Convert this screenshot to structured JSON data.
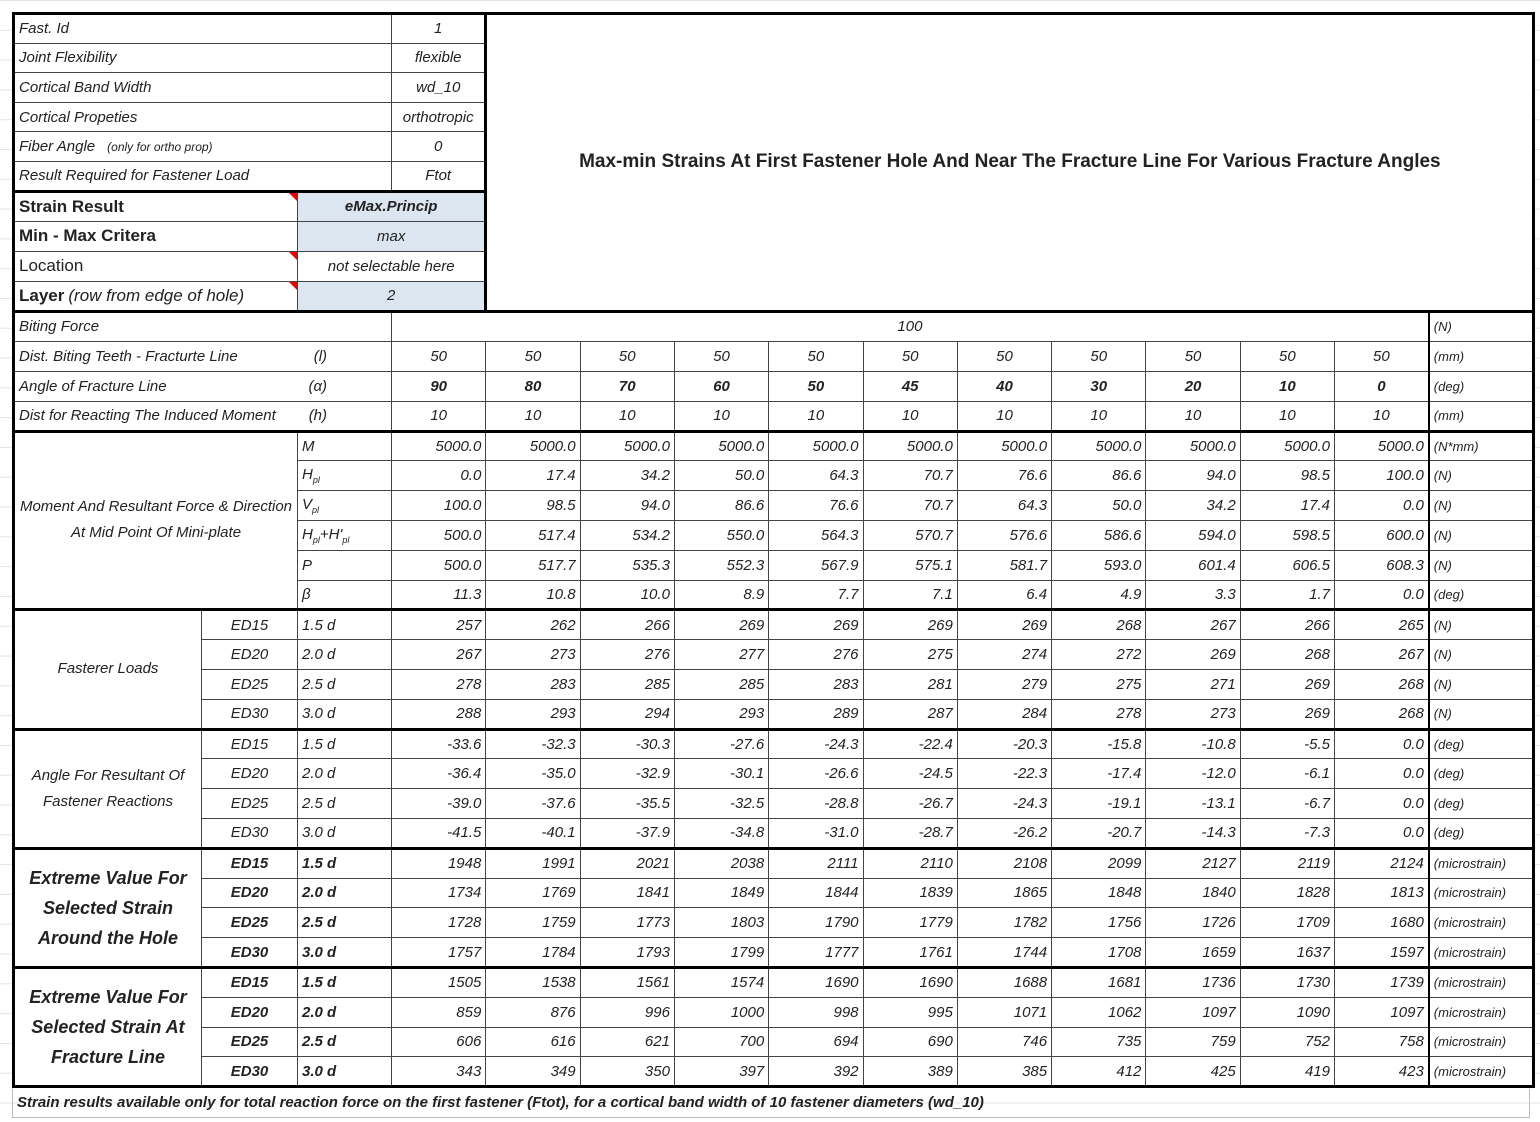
{
  "title": "Max-min Strains At First Fastener Hole And Near The Fracture Line For Various Fracture Angles",
  "params": [
    {
      "label": "Fast. Id",
      "value": "1"
    },
    {
      "label": "Joint Flexibility",
      "value": "flexible"
    },
    {
      "label": "Cortical Band Width",
      "value": "wd_10"
    },
    {
      "label": "Cortical Propeties",
      "value": "orthotropic"
    },
    {
      "label": "Fiber Angle",
      "note": "(only for ortho prop)",
      "value": "0"
    },
    {
      "label": "Result Required for Fastener Load",
      "value": "Ftot"
    }
  ],
  "selectors": [
    {
      "label": "Strain Result",
      "value": "eMax.Princip",
      "selectable": true,
      "comment": true
    },
    {
      "label": "Min - Max Critera",
      "value": "max",
      "selectable": true,
      "comment": false
    },
    {
      "label": "Location",
      "value": "not selectable here",
      "selectable": false,
      "comment": true
    },
    {
      "label": "Layer",
      "label_note": "(row from edge of hole)",
      "value": "2",
      "selectable": true,
      "comment": true
    }
  ],
  "biting_force": {
    "label": "Biting Force",
    "value": "100",
    "unit": "(N)"
  },
  "inputs": [
    {
      "label": "Dist. Biting Teeth - Fracturte Line",
      "symbol": "(l)",
      "values": [
        "50",
        "50",
        "50",
        "50",
        "50",
        "50",
        "50",
        "50",
        "50",
        "50",
        "50"
      ],
      "unit": "(mm)"
    },
    {
      "label": "Angle of Fracture Line",
      "symbol": "(α)",
      "values": [
        "90",
        "80",
        "70",
        "60",
        "50",
        "45",
        "40",
        "30",
        "20",
        "10",
        "0"
      ],
      "unit": "(deg)",
      "bold": true
    },
    {
      "label": "Dist for Reacting The Induced Moment",
      "symbol": "(h)",
      "values": [
        "10",
        "10",
        "10",
        "10",
        "10",
        "10",
        "10",
        "10",
        "10",
        "10",
        "10"
      ],
      "unit": "(mm)"
    }
  ],
  "moment": {
    "label": "Moment And Resultant Force & Direction At Mid Point Of Mini-plate",
    "rows": [
      {
        "sym": "M",
        "values": [
          "5000.0",
          "5000.0",
          "5000.0",
          "5000.0",
          "5000.0",
          "5000.0",
          "5000.0",
          "5000.0",
          "5000.0",
          "5000.0",
          "5000.0"
        ],
        "unit": "(N*mm)"
      },
      {
        "sym": "H",
        "sub": "pl",
        "values": [
          "0.0",
          "17.4",
          "34.2",
          "50.0",
          "64.3",
          "70.7",
          "76.6",
          "86.6",
          "94.0",
          "98.5",
          "100.0"
        ],
        "unit": "(N)"
      },
      {
        "sym": "V",
        "sub": "pl",
        "values": [
          "100.0",
          "98.5",
          "94.0",
          "86.6",
          "76.6",
          "70.7",
          "64.3",
          "50.0",
          "34.2",
          "17.4",
          "0.0"
        ],
        "unit": "(N)"
      },
      {
        "sym": "H",
        "sub": "pl",
        "sym2": "+H'",
        "sub2": "pl",
        "values": [
          "500.0",
          "517.4",
          "534.2",
          "550.0",
          "564.3",
          "570.7",
          "576.6",
          "586.6",
          "594.0",
          "598.5",
          "600.0"
        ],
        "unit": "(N)"
      },
      {
        "sym": "P",
        "values": [
          "500.0",
          "517.7",
          "535.3",
          "552.3",
          "567.9",
          "575.1",
          "581.7",
          "593.0",
          "601.4",
          "606.5",
          "608.3"
        ],
        "unit": "(N)"
      },
      {
        "sym": "β",
        "values": [
          "11.3",
          "10.8",
          "10.0",
          "8.9",
          "7.7",
          "7.1",
          "6.4",
          "4.9",
          "3.3",
          "1.7",
          "0.0"
        ],
        "unit": "(deg)"
      }
    ]
  },
  "groups": [
    {
      "label": "Fasterer Loads",
      "bold": false,
      "rows": [
        {
          "ed": "ED15",
          "d": "1.5 d",
          "values": [
            "257",
            "262",
            "266",
            "269",
            "269",
            "269",
            "269",
            "268",
            "267",
            "266",
            "265"
          ],
          "unit": "(N)"
        },
        {
          "ed": "ED20",
          "d": "2.0 d",
          "values": [
            "267",
            "273",
            "276",
            "277",
            "276",
            "275",
            "274",
            "272",
            "269",
            "268",
            "267"
          ],
          "unit": "(N)"
        },
        {
          "ed": "ED25",
          "d": "2.5 d",
          "values": [
            "278",
            "283",
            "285",
            "285",
            "283",
            "281",
            "279",
            "275",
            "271",
            "269",
            "268"
          ],
          "unit": "(N)"
        },
        {
          "ed": "ED30",
          "d": "3.0 d",
          "values": [
            "288",
            "293",
            "294",
            "293",
            "289",
            "287",
            "284",
            "278",
            "273",
            "269",
            "268"
          ],
          "unit": "(N)"
        }
      ]
    },
    {
      "label": "Angle For Resultant Of Fastener Reactions",
      "bold": false,
      "rows": [
        {
          "ed": "ED15",
          "d": "1.5 d",
          "values": [
            "-33.6",
            "-32.3",
            "-30.3",
            "-27.6",
            "-24.3",
            "-22.4",
            "-20.3",
            "-15.8",
            "-10.8",
            "-5.5",
            "0.0"
          ],
          "unit": "(deg)"
        },
        {
          "ed": "ED20",
          "d": "2.0 d",
          "values": [
            "-36.4",
            "-35.0",
            "-32.9",
            "-30.1",
            "-26.6",
            "-24.5",
            "-22.3",
            "-17.4",
            "-12.0",
            "-6.1",
            "0.0"
          ],
          "unit": "(deg)"
        },
        {
          "ed": "ED25",
          "d": "2.5 d",
          "values": [
            "-39.0",
            "-37.6",
            "-35.5",
            "-32.5",
            "-28.8",
            "-26.7",
            "-24.3",
            "-19.1",
            "-13.1",
            "-6.7",
            "0.0"
          ],
          "unit": "(deg)"
        },
        {
          "ed": "ED30",
          "d": "3.0 d",
          "values": [
            "-41.5",
            "-40.1",
            "-37.9",
            "-34.8",
            "-31.0",
            "-28.7",
            "-26.2",
            "-20.7",
            "-14.3",
            "-7.3",
            "0.0"
          ],
          "unit": "(deg)"
        }
      ]
    },
    {
      "label": "Extreme Value For Selected Strain Around the Hole",
      "bold": true,
      "rows": [
        {
          "ed": "ED15",
          "d": "1.5 d",
          "values": [
            "1948",
            "1991",
            "2021",
            "2038",
            "2111",
            "2110",
            "2108",
            "2099",
            "2127",
            "2119",
            "2124"
          ],
          "unit": "(microstrain)"
        },
        {
          "ed": "ED20",
          "d": "2.0 d",
          "values": [
            "1734",
            "1769",
            "1841",
            "1849",
            "1844",
            "1839",
            "1865",
            "1848",
            "1840",
            "1828",
            "1813"
          ],
          "unit": "(microstrain)"
        },
        {
          "ed": "ED25",
          "d": "2.5 d",
          "values": [
            "1728",
            "1759",
            "1773",
            "1803",
            "1790",
            "1779",
            "1782",
            "1756",
            "1726",
            "1709",
            "1680"
          ],
          "unit": "(microstrain)"
        },
        {
          "ed": "ED30",
          "d": "3.0 d",
          "values": [
            "1757",
            "1784",
            "1793",
            "1799",
            "1777",
            "1761",
            "1744",
            "1708",
            "1659",
            "1637",
            "1597"
          ],
          "unit": "(microstrain)"
        }
      ]
    },
    {
      "label": "Extreme Value For Selected Strain At Fracture Line",
      "bold": true,
      "rows": [
        {
          "ed": "ED15",
          "d": "1.5 d",
          "values": [
            "1505",
            "1538",
            "1561",
            "1574",
            "1690",
            "1690",
            "1688",
            "1681",
            "1736",
            "1730",
            "1739"
          ],
          "unit": "(microstrain)"
        },
        {
          "ed": "ED20",
          "d": "2.0 d",
          "values": [
            "859",
            "876",
            "996",
            "1000",
            "998",
            "995",
            "1071",
            "1062",
            "1097",
            "1090",
            "1097"
          ],
          "unit": "(microstrain)"
        },
        {
          "ed": "ED25",
          "d": "2.5 d",
          "values": [
            "606",
            "616",
            "621",
            "700",
            "694",
            "690",
            "746",
            "735",
            "759",
            "752",
            "758"
          ],
          "unit": "(microstrain)"
        },
        {
          "ed": "ED30",
          "d": "3.0 d",
          "values": [
            "343",
            "349",
            "350",
            "397",
            "392",
            "389",
            "385",
            "412",
            "425",
            "419",
            "423"
          ],
          "unit": "(microstrain)"
        }
      ]
    }
  ],
  "footer": "Strain results available only for total reaction force on the first fastener (Ftot), for  a cortical band width of 10 fastener diameters (wd_10)",
  "colors": {
    "selectable_fill": "#dce6f1",
    "comment_marker": "#e00000",
    "border": "#000000"
  }
}
